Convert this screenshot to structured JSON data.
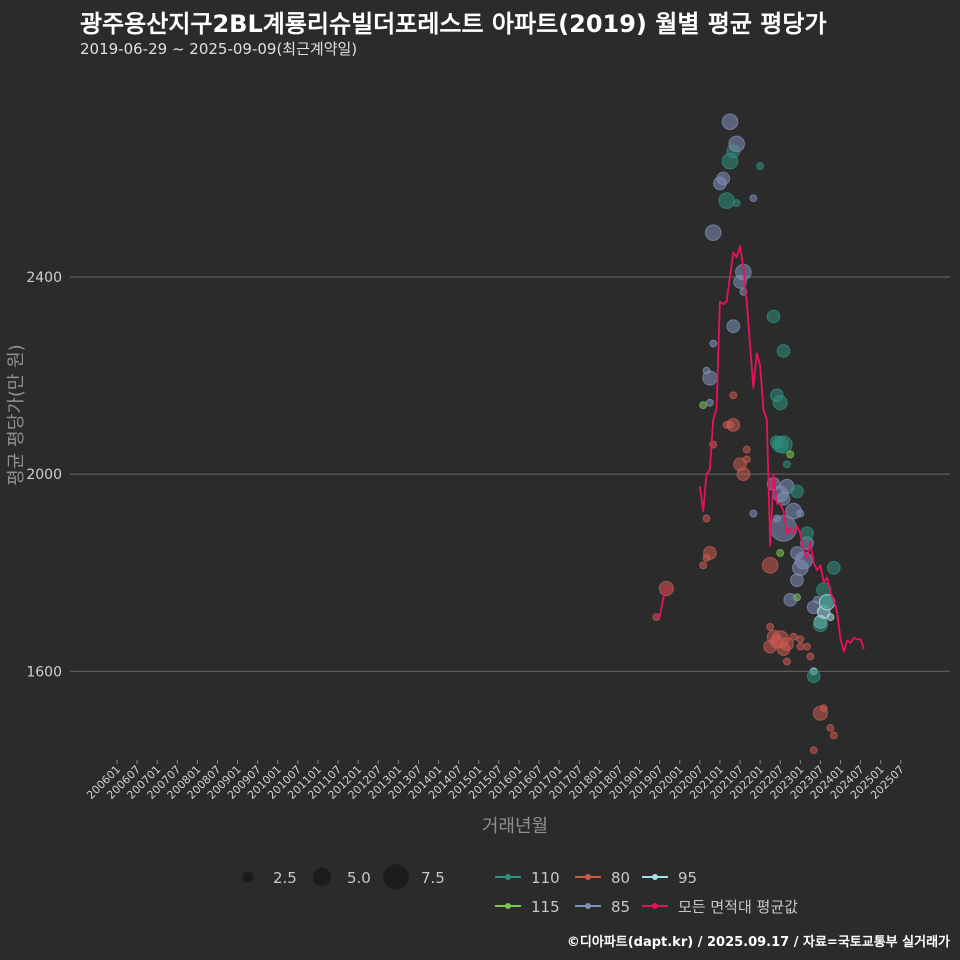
{
  "header": {
    "title": "광주용산지구2BL계룡리슈빌더포레스트 아파트(2019) 월별 평균 평당가",
    "subtitle": "2019-06-29 ~ 2025-09-09(최근계약일)"
  },
  "footer": {
    "credit": "©디아파트(dapt.kr) / 2025.09.17 / 자료=국토교통부 실거래가"
  },
  "chart_data": {
    "type": "scatter",
    "xlabel": "거래년월",
    "ylabel": "평균 평당가(만 원)",
    "ylim": [
      1420,
      2820
    ],
    "yticks": [
      1600,
      2000,
      2400
    ],
    "x_start": "2006-01",
    "x_end": "2025-09",
    "x_ticks": [
      "200601",
      "200607",
      "200701",
      "200707",
      "200801",
      "200807",
      "200901",
      "200907",
      "201001",
      "201007",
      "201101",
      "201107",
      "201201",
      "201207",
      "201301",
      "201307",
      "201401",
      "201407",
      "201501",
      "201507",
      "201601",
      "201607",
      "201701",
      "201707",
      "201801",
      "201807",
      "201901",
      "201907",
      "202001",
      "202007",
      "202101",
      "202107",
      "202201",
      "202207",
      "202301",
      "202307",
      "202401",
      "202407",
      "202501",
      "202507"
    ],
    "area_colors": {
      "110": "#2f8f80",
      "115": "#78c850",
      "80": "#c85a50",
      "85": "#7f8fb8",
      "95": "#a8dde8"
    },
    "line_color": "#e8125c",
    "size_legend": [
      {
        "label": "2.5",
        "size": 2.5
      },
      {
        "label": "5.0",
        "size": 5.0
      },
      {
        "label": "7.5",
        "size": 7.5
      }
    ],
    "color_legend": [
      {
        "label": "110",
        "key": "110"
      },
      {
        "label": "80",
        "key": "80"
      },
      {
        "label": "95",
        "key": "95"
      },
      {
        "label": "115",
        "key": "115"
      },
      {
        "label": "85",
        "key": "85"
      },
      {
        "label": "모든 면적대 평균값",
        "key": "avg"
      }
    ],
    "avg_series": [
      {
        "x": "2019-06",
        "y": 1712
      },
      {
        "x": "2019-07",
        "y": 1710
      },
      {
        "x": "2019-08",
        "y": 1745
      },
      {
        "x": "2019-09",
        "y": 1768
      },
      {
        "x": "2019-10",
        "y": 1770
      },
      {
        "x": "2020-07",
        "y": 1975
      },
      {
        "x": "2020-08",
        "y": 1925
      },
      {
        "x": "2020-09",
        "y": 2000
      },
      {
        "x": "2020-10",
        "y": 2010
      },
      {
        "x": "2020-11",
        "y": 2110
      },
      {
        "x": "2020-12",
        "y": 2135
      },
      {
        "x": "2021-01",
        "y": 2350
      },
      {
        "x": "2021-02",
        "y": 2345
      },
      {
        "x": "2021-03",
        "y": 2350
      },
      {
        "x": "2021-04",
        "y": 2400
      },
      {
        "x": "2021-05",
        "y": 2450
      },
      {
        "x": "2021-06",
        "y": 2440
      },
      {
        "x": "2021-07",
        "y": 2462
      },
      {
        "x": "2021-08",
        "y": 2420
      },
      {
        "x": "2021-09",
        "y": 2350
      },
      {
        "x": "2021-10",
        "y": 2260
      },
      {
        "x": "2021-11",
        "y": 2175
      },
      {
        "x": "2021-12",
        "y": 2245
      },
      {
        "x": "2022-01",
        "y": 2220
      },
      {
        "x": "2022-02",
        "y": 2130
      },
      {
        "x": "2022-03",
        "y": 2110
      },
      {
        "x": "2022-04",
        "y": 1855
      },
      {
        "x": "2022-05",
        "y": 2000
      },
      {
        "x": "2022-06",
        "y": 1940
      },
      {
        "x": "2022-07",
        "y": 1940
      },
      {
        "x": "2022-08",
        "y": 1925
      },
      {
        "x": "2022-09",
        "y": 1880
      },
      {
        "x": "2022-10",
        "y": 1890
      },
      {
        "x": "2022-11",
        "y": 1880
      },
      {
        "x": "2022-12",
        "y": 1895
      },
      {
        "x": "2023-01",
        "y": 1880
      },
      {
        "x": "2023-02",
        "y": 1845
      },
      {
        "x": "2023-03",
        "y": 1830
      },
      {
        "x": "2023-04",
        "y": 1860
      },
      {
        "x": "2023-05",
        "y": 1820
      },
      {
        "x": "2023-06",
        "y": 1805
      },
      {
        "x": "2023-07",
        "y": 1815
      },
      {
        "x": "2023-08",
        "y": 1780
      },
      {
        "x": "2023-09",
        "y": 1790
      },
      {
        "x": "2023-10",
        "y": 1760
      },
      {
        "x": "2023-11",
        "y": 1745
      },
      {
        "x": "2023-12",
        "y": 1720
      },
      {
        "x": "2024-01",
        "y": 1665
      },
      {
        "x": "2024-02",
        "y": 1640
      },
      {
        "x": "2024-03",
        "y": 1662
      },
      {
        "x": "2024-04",
        "y": 1658
      },
      {
        "x": "2024-05",
        "y": 1668
      },
      {
        "x": "2024-06",
        "y": 1665
      },
      {
        "x": "2024-07",
        "y": 1665
      },
      {
        "x": "2024-08",
        "y": 1645
      }
    ],
    "points": [
      {
        "x": "2019-09",
        "y": 1768,
        "area": "80",
        "size": 3.5
      },
      {
        "x": "2019-06",
        "y": 1710,
        "area": "80",
        "size": 1
      },
      {
        "x": "2020-08",
        "y": 2140,
        "area": "115",
        "size": 1
      },
      {
        "x": "2020-09",
        "y": 2210,
        "area": "85",
        "size": 1
      },
      {
        "x": "2020-10",
        "y": 2195,
        "area": "85",
        "size": 3.5
      },
      {
        "x": "2020-10",
        "y": 2145,
        "area": "85",
        "size": 1
      },
      {
        "x": "2020-11",
        "y": 2265,
        "area": "85",
        "size": 1
      },
      {
        "x": "2020-11",
        "y": 2060,
        "area": "80",
        "size": 1
      },
      {
        "x": "2020-08",
        "y": 1815,
        "area": "80",
        "size": 1
      },
      {
        "x": "2020-09",
        "y": 1830,
        "area": "80",
        "size": 1
      },
      {
        "x": "2020-10",
        "y": 1840,
        "area": "80",
        "size": 3
      },
      {
        "x": "2020-09",
        "y": 1910,
        "area": "80",
        "size": 1
      },
      {
        "x": "2021-01",
        "y": 2590,
        "area": "85",
        "size": 3
      },
      {
        "x": "2021-02",
        "y": 2600,
        "area": "85",
        "size": 3
      },
      {
        "x": "2021-03",
        "y": 2555,
        "area": "110",
        "size": 4
      },
      {
        "x": "2021-04",
        "y": 2635,
        "area": "110",
        "size": 4
      },
      {
        "x": "2021-04",
        "y": 2715,
        "area": "85",
        "size": 4
      },
      {
        "x": "2021-05",
        "y": 2655,
        "area": "110",
        "size": 3
      },
      {
        "x": "2021-06",
        "y": 2670,
        "area": "85",
        "size": 4
      },
      {
        "x": "2021-06",
        "y": 2550,
        "area": "110",
        "size": 1
      },
      {
        "x": "2020-11",
        "y": 2490,
        "area": "85",
        "size": 4
      },
      {
        "x": "2021-07",
        "y": 2390,
        "area": "85",
        "size": 3
      },
      {
        "x": "2021-08",
        "y": 2410,
        "area": "85",
        "size": 4
      },
      {
        "x": "2021-08",
        "y": 2370,
        "area": "85",
        "size": 1
      },
      {
        "x": "2021-05",
        "y": 2300,
        "area": "85",
        "size": 3
      },
      {
        "x": "2021-03",
        "y": 2100,
        "area": "80",
        "size": 1
      },
      {
        "x": "2021-04",
        "y": 2100,
        "area": "80",
        "size": 1
      },
      {
        "x": "2021-05",
        "y": 2100,
        "area": "80",
        "size": 3
      },
      {
        "x": "2021-05",
        "y": 2160,
        "area": "80",
        "size": 1
      },
      {
        "x": "2021-07",
        "y": 2020,
        "area": "80",
        "size": 3
      },
      {
        "x": "2021-08",
        "y": 2000,
        "area": "80",
        "size": 3
      },
      {
        "x": "2021-09",
        "y": 2030,
        "area": "80",
        "size": 1
      },
      {
        "x": "2021-09",
        "y": 2050,
        "area": "80",
        "size": 1
      },
      {
        "x": "2022-01",
        "y": 2625,
        "area": "110",
        "size": 1
      },
      {
        "x": "2021-11",
        "y": 2560,
        "area": "85",
        "size": 1
      },
      {
        "x": "2022-04",
        "y": 1815,
        "area": "80",
        "size": 4
      },
      {
        "x": "2022-05",
        "y": 2320,
        "area": "110",
        "size": 3
      },
      {
        "x": "2022-06",
        "y": 2160,
        "area": "110",
        "size": 3
      },
      {
        "x": "2022-07",
        "y": 2145,
        "area": "110",
        "size": 3.5
      },
      {
        "x": "2022-08",
        "y": 2250,
        "area": "110",
        "size": 3
      },
      {
        "x": "2022-07",
        "y": 2060,
        "area": "110",
        "size": 4
      },
      {
        "x": "2022-08",
        "y": 2060,
        "area": "110",
        "size": 4.5
      },
      {
        "x": "2022-06",
        "y": 2065,
        "area": "110",
        "size": 3
      },
      {
        "x": "2022-05",
        "y": 1980,
        "area": "85",
        "size": 3
      },
      {
        "x": "2022-07",
        "y": 1960,
        "area": "85",
        "size": 4
      },
      {
        "x": "2022-08",
        "y": 1950,
        "area": "85",
        "size": 3
      },
      {
        "x": "2022-08",
        "y": 1890,
        "area": "85",
        "size": 7.5
      },
      {
        "x": "2022-09",
        "y": 1975,
        "area": "85",
        "size": 3.5
      },
      {
        "x": "2022-11",
        "y": 1925,
        "area": "85",
        "size": 4
      },
      {
        "x": "2022-06",
        "y": 1910,
        "area": "85",
        "size": 1
      },
      {
        "x": "2021-11",
        "y": 1920,
        "area": "85",
        "size": 1
      },
      {
        "x": "2022-07",
        "y": 1840,
        "area": "115",
        "size": 1
      },
      {
        "x": "2022-10",
        "y": 2040,
        "area": "115",
        "size": 1
      },
      {
        "x": "2022-09",
        "y": 2020,
        "area": "110",
        "size": 1
      },
      {
        "x": "2022-12",
        "y": 1965,
        "area": "110",
        "size": 3
      },
      {
        "x": "2023-01",
        "y": 1920,
        "area": "85",
        "size": 1
      },
      {
        "x": "2022-12",
        "y": 1840,
        "area": "85",
        "size": 3
      },
      {
        "x": "2023-01",
        "y": 1810,
        "area": "85",
        "size": 4
      },
      {
        "x": "2023-02",
        "y": 1825,
        "area": "85",
        "size": 4.5
      },
      {
        "x": "2023-03",
        "y": 1860,
        "area": "85",
        "size": 3
      },
      {
        "x": "2023-03",
        "y": 1880,
        "area": "110",
        "size": 3
      },
      {
        "x": "2022-12",
        "y": 1785,
        "area": "85",
        "size": 3
      },
      {
        "x": "2022-12",
        "y": 1750,
        "area": "115",
        "size": 1
      },
      {
        "x": "2022-10",
        "y": 1745,
        "area": "85",
        "size": 3
      },
      {
        "x": "2022-04",
        "y": 1690,
        "area": "80",
        "size": 1
      },
      {
        "x": "2022-04",
        "y": 1650,
        "area": "80",
        "size": 3
      },
      {
        "x": "2022-05",
        "y": 1670,
        "area": "80",
        "size": 3
      },
      {
        "x": "2022-06",
        "y": 1660,
        "area": "80",
        "size": 3
      },
      {
        "x": "2022-07",
        "y": 1665,
        "area": "80",
        "size": 4.5
      },
      {
        "x": "2022-08",
        "y": 1645,
        "area": "80",
        "size": 3
      },
      {
        "x": "2022-09",
        "y": 1655,
        "area": "80",
        "size": 3
      },
      {
        "x": "2022-09",
        "y": 1620,
        "area": "80",
        "size": 1
      },
      {
        "x": "2022-11",
        "y": 1670,
        "area": "80",
        "size": 1
      },
      {
        "x": "2023-01",
        "y": 1650,
        "area": "80",
        "size": 1
      },
      {
        "x": "2023-01",
        "y": 1665,
        "area": "80",
        "size": 1
      },
      {
        "x": "2023-03",
        "y": 1650,
        "area": "80",
        "size": 1
      },
      {
        "x": "2023-04",
        "y": 1630,
        "area": "80",
        "size": 1
      },
      {
        "x": "2023-05",
        "y": 1600,
        "area": "95",
        "size": 1
      },
      {
        "x": "2023-05",
        "y": 1590,
        "area": "110",
        "size": 3
      },
      {
        "x": "2023-05",
        "y": 1730,
        "area": "85",
        "size": 3
      },
      {
        "x": "2023-06",
        "y": 1745,
        "area": "85",
        "size": 1
      },
      {
        "x": "2023-07",
        "y": 1700,
        "area": "95",
        "size": 3
      },
      {
        "x": "2023-07",
        "y": 1695,
        "area": "110",
        "size": 3.5
      },
      {
        "x": "2023-08",
        "y": 1720,
        "area": "95",
        "size": 3
      },
      {
        "x": "2023-08",
        "y": 1765,
        "area": "110",
        "size": 3.5
      },
      {
        "x": "2023-09",
        "y": 1740,
        "area": "95",
        "size": 4
      },
      {
        "x": "2023-09",
        "y": 1740,
        "area": "110",
        "size": 3
      },
      {
        "x": "2023-10",
        "y": 1710,
        "area": "95",
        "size": 1
      },
      {
        "x": "2023-11",
        "y": 1810,
        "area": "110",
        "size": 3
      },
      {
        "x": "2023-05",
        "y": 1440,
        "area": "80",
        "size": 1
      },
      {
        "x": "2023-07",
        "y": 1515,
        "area": "80",
        "size": 3.5
      },
      {
        "x": "2023-08",
        "y": 1525,
        "area": "80",
        "size": 1
      },
      {
        "x": "2023-10",
        "y": 1485,
        "area": "80",
        "size": 1
      },
      {
        "x": "2023-11",
        "y": 1470,
        "area": "80",
        "size": 1
      }
    ]
  }
}
